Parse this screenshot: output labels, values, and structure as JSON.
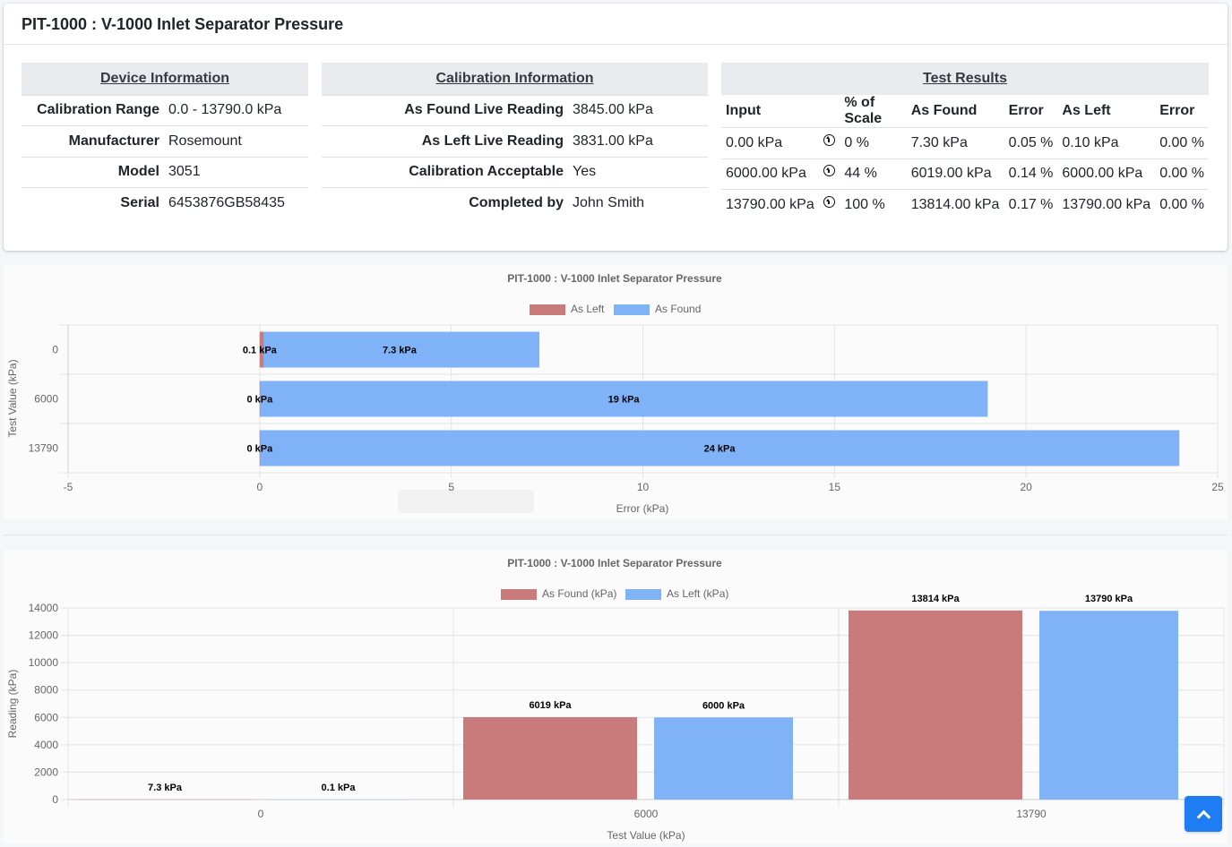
{
  "card": {
    "title": "PIT-1000 : V-1000 Inlet Separator Pressure"
  },
  "device": {
    "heading": "Device Information",
    "rows": [
      {
        "label": "Calibration Range",
        "value": "0.0 - 13790.0 kPa"
      },
      {
        "label": "Manufacturer",
        "value": "Rosemount"
      },
      {
        "label": "Model",
        "value": "3051"
      },
      {
        "label": "Serial",
        "value": "6453876GB58435"
      }
    ]
  },
  "calibration": {
    "heading": "Calibration Information",
    "rows": [
      {
        "label": "As Found Live Reading",
        "value": "3845.00 kPa"
      },
      {
        "label": "As Left Live Reading",
        "value": "3831.00 kPa"
      },
      {
        "label": "Calibration Acceptable",
        "value": "Yes"
      },
      {
        "label": "Completed by",
        "value": "John Smith"
      }
    ]
  },
  "results": {
    "heading": "Test Results",
    "columns": [
      "Input",
      "% of Scale",
      "As Found",
      "Error",
      "As Left",
      "Error"
    ],
    "icon": "arrow-circle-up-icon",
    "rows": [
      {
        "input": "0.00 kPa",
        "scale": "0 %",
        "as_found": "7.30 kPa",
        "found_error": "0.05 %",
        "as_left": "0.10 kPa",
        "left_error": "0.00 %"
      },
      {
        "input": "6000.00 kPa",
        "scale": "44 %",
        "as_found": "6019.00 kPa",
        "found_error": "0.14 %",
        "as_left": "6000.00 kPa",
        "left_error": "0.00 %"
      },
      {
        "input": "13790.00 kPa",
        "scale": "100 %",
        "as_found": "13814.00 kPa",
        "found_error": "0.17 %",
        "as_left": "13790.00 kPa",
        "left_error": "0.00 %"
      }
    ]
  },
  "chart_data": [
    {
      "type": "bar",
      "orientation": "horizontal",
      "stacked": false,
      "title": "PIT-1000 : V-1000 Inlet Separator Pressure",
      "xlabel": "Error (kPa)",
      "ylabel": "Test Value (kPa)",
      "categories": [
        "0",
        "6000",
        "13790"
      ],
      "series": [
        {
          "name": "As Left",
          "color": "#c97a7a",
          "values": [
            0.1,
            0,
            0
          ],
          "labels": [
            "0.1 kPa",
            "0 kPa",
            "0 kPa"
          ]
        },
        {
          "name": "As Found",
          "color": "#80b2f7",
          "values": [
            7.3,
            19,
            24
          ],
          "labels": [
            "7.3 kPa",
            "19 kPa",
            "24 kPa"
          ]
        }
      ],
      "xlim": [
        -5,
        25
      ],
      "xticks": [
        -5,
        0,
        5,
        10,
        15,
        20,
        25
      ],
      "grid": true,
      "legend_position": "top"
    },
    {
      "type": "bar",
      "orientation": "vertical",
      "title": "PIT-1000 : V-1000 Inlet Separator Pressure",
      "xlabel": "Test Value (kPa)",
      "ylabel": "Reading (kPa)",
      "categories": [
        "0",
        "6000",
        "13790"
      ],
      "series": [
        {
          "name": "As Found (kPa)",
          "color": "#c97a7a",
          "values": [
            7.3,
            6019,
            13814
          ],
          "labels": [
            "7.3 kPa",
            "6019 kPa",
            "13814 kPa"
          ]
        },
        {
          "name": "As Left (kPa)",
          "color": "#80b2f7",
          "values": [
            0.1,
            6000,
            13790
          ],
          "labels": [
            "0.1 kPa",
            "6000 kPa",
            "13790 kPa"
          ]
        }
      ],
      "ylim": [
        0,
        14000
      ],
      "yticks": [
        0,
        2000,
        4000,
        6000,
        8000,
        10000,
        12000,
        14000
      ],
      "grid": true,
      "legend_position": "top"
    }
  ],
  "back_to_top": {
    "icon": "chevron-up-icon"
  }
}
